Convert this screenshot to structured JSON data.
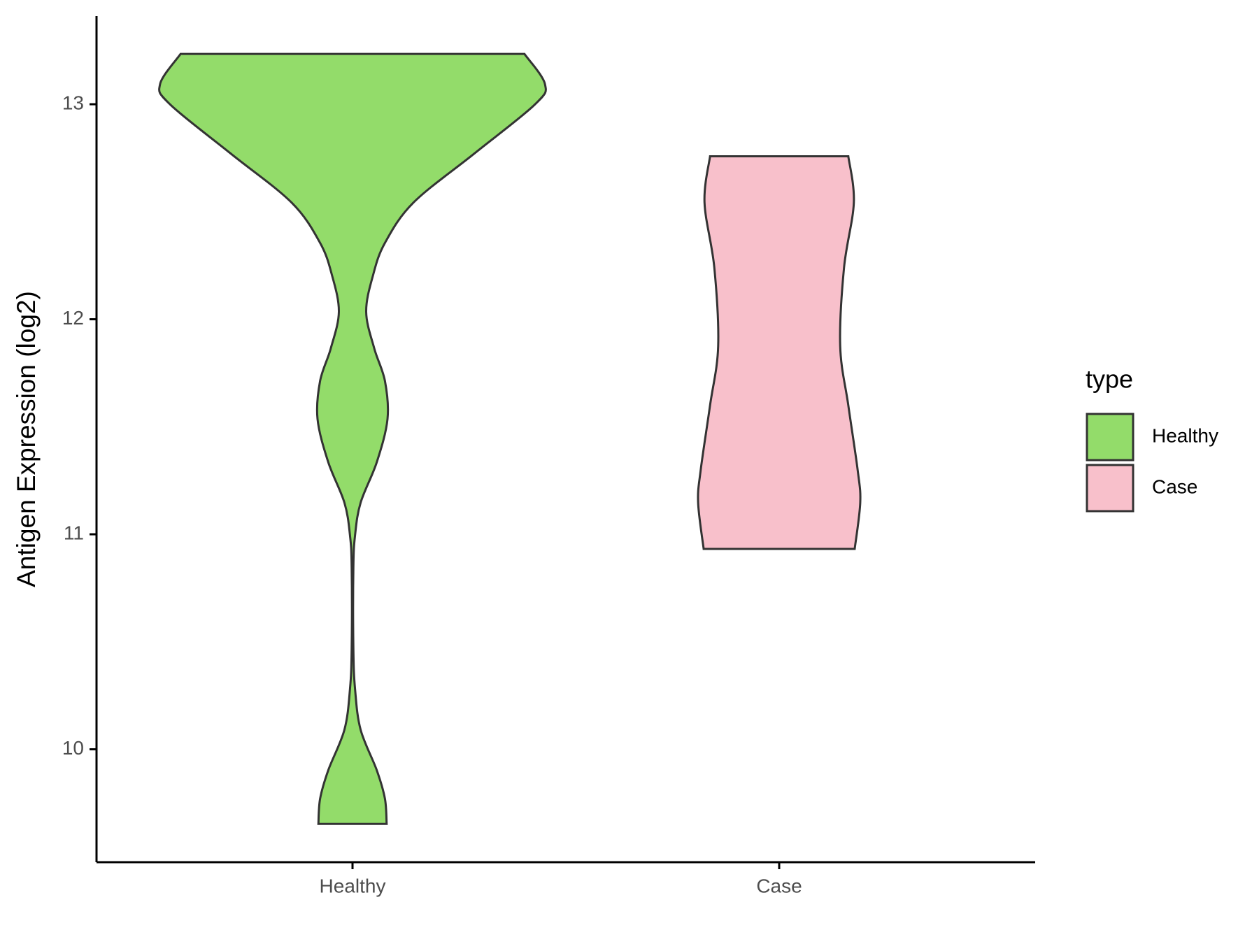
{
  "chart_data": {
    "type": "violin",
    "ylabel": "Antigen Expression (log2)",
    "categories": [
      "Healthy",
      "Case"
    ],
    "legend_title": "type",
    "legend": "right",
    "ylim": [
      9.475,
      13.41
    ],
    "yticks": [
      10,
      11,
      12,
      13
    ],
    "series": [
      {
        "name": "Healthy",
        "color": "#93dc6a",
        "y": [
          13.234,
          13.094,
          13.0,
          12.77,
          12.543,
          12.355,
          12.204,
          12.034,
          11.864,
          11.713,
          11.536,
          11.336,
          11.147,
          10.996,
          10.845,
          10.468,
          10.279,
          10.091,
          9.902,
          9.77,
          9.653
        ],
        "density": [
          0.403,
          0.451,
          0.428,
          0.285,
          0.143,
          0.076,
          0.048,
          0.032,
          0.051,
          0.076,
          0.082,
          0.057,
          0.019,
          0.006,
          0.002,
          0.002,
          0.006,
          0.019,
          0.057,
          0.076,
          0.08
        ]
      },
      {
        "name": "Case",
        "color": "#f8c0cb",
        "y": [
          12.758,
          12.543,
          12.24,
          11.875,
          11.6,
          11.298,
          11.147,
          10.932
        ],
        "density": [
          0.162,
          0.175,
          0.152,
          0.143,
          0.162,
          0.184,
          0.19,
          0.177
        ]
      }
    ]
  }
}
